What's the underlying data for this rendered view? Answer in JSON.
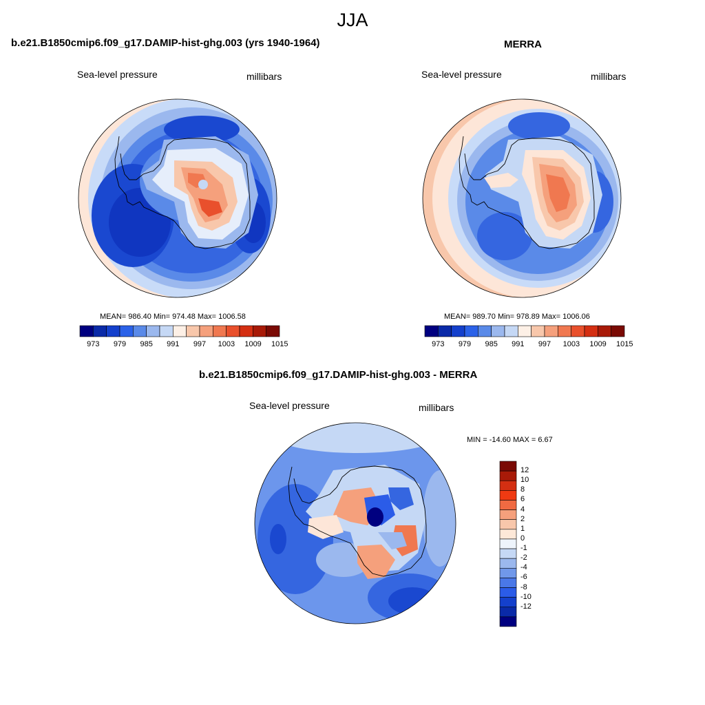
{
  "page": {
    "title": "JJA"
  },
  "panels": {
    "model": {
      "title": "b.e21.B1850cmip6.f09_g17.DAMIP-hist-ghg.003 (yrs 1940-1964)",
      "variable": "Sea-level pressure",
      "units": "millibars",
      "stats": "MEAN= 986.40  Min= 974.48  Max= 1006.58",
      "mean": 986.4,
      "min": 974.48,
      "max": 1006.58
    },
    "obs": {
      "title": "MERRA",
      "variable": "Sea-level pressure",
      "units": "millibars",
      "stats": "MEAN= 989.70  Min= 978.89  Max= 1006.06",
      "mean": 989.7,
      "min": 978.89,
      "max": 1006.06
    },
    "diff": {
      "title": "b.e21.B1850cmip6.f09_g17.DAMIP-hist-ghg.003 - MERRA",
      "variable": "Sea-level pressure",
      "units": "millibars",
      "stats": "MIN = -14.60 MAX =   6.67",
      "min": -14.6,
      "max": 6.67
    }
  },
  "colorbar_abs": {
    "colors": [
      "#000080",
      "#0a2aa8",
      "#1440cc",
      "#2b62e8",
      "#5a8ae8",
      "#9bb8ee",
      "#c5d8f5",
      "#fdf0e6",
      "#f8c7ab",
      "#f5a07c",
      "#f07850",
      "#e9502c",
      "#d42f12",
      "#a81a08",
      "#7a0a04"
    ],
    "labels": [
      "973",
      "979",
      "985",
      "991",
      "997",
      "1003",
      "1009",
      "1015"
    ]
  },
  "colorbar_diff": {
    "colors": [
      "#7a0a04",
      "#a81a08",
      "#d42f12",
      "#f03a12",
      "#f06a42",
      "#f5a07c",
      "#f8c7ab",
      "#fde8d8",
      "#eef4fb",
      "#c5d8f5",
      "#9bb8ee",
      "#7098ea",
      "#4a78e8",
      "#2b5ce8",
      "#1440cc",
      "#0a2aa8",
      "#000080"
    ],
    "labels": [
      "12",
      "10",
      "8",
      "6",
      "4",
      "2",
      "1",
      "0",
      "-1",
      "-2",
      "-4",
      "-6",
      "-8",
      "-10",
      "-12"
    ]
  },
  "colors": {
    "ocean_mid": "#3566e0",
    "ocean_deep": "#1540c8",
    "continent_low": "#c8dbf8",
    "continent_high": "#f08060",
    "diff_base": "#6c96ec"
  }
}
